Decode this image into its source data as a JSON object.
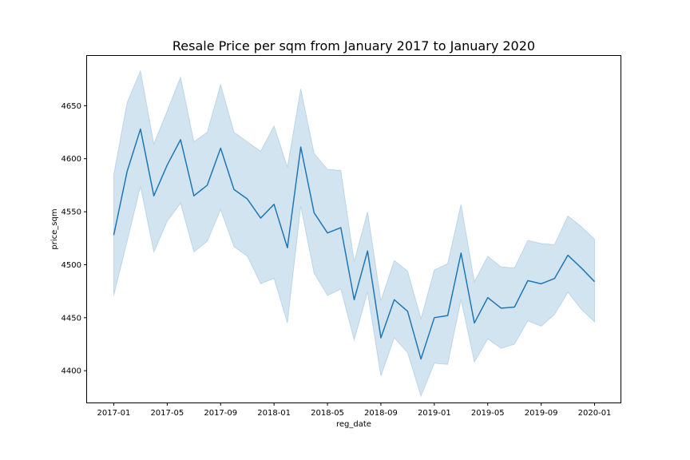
{
  "chart_data": {
    "type": "line",
    "title": "Resale Price per sqm from January 2017 to January 2020",
    "xlabel": "reg_date",
    "ylabel": "price_sqm",
    "x_tick_labels": [
      "2017-01",
      "2017-05",
      "2017-09",
      "2018-01",
      "2018-05",
      "2018-09",
      "2019-01",
      "2019-05",
      "2019-09",
      "2020-01"
    ],
    "y_ticks": [
      4400,
      4450,
      4500,
      4550,
      4600,
      4650
    ],
    "ylim": [
      4370,
      4697
    ],
    "xlim": [
      "2016-11",
      "2020-03"
    ],
    "grid": false,
    "legend": false,
    "x": [
      "2017-01",
      "2017-02",
      "2017-03",
      "2017-04",
      "2017-05",
      "2017-06",
      "2017-07",
      "2017-08",
      "2017-09",
      "2017-10",
      "2017-11",
      "2017-12",
      "2018-01",
      "2018-02",
      "2018-03",
      "2018-04",
      "2018-05",
      "2018-06",
      "2018-07",
      "2018-08",
      "2018-09",
      "2018-10",
      "2018-11",
      "2018-12",
      "2019-01",
      "2019-02",
      "2019-03",
      "2019-04",
      "2019-05",
      "2019-06",
      "2019-07",
      "2019-08",
      "2019-09",
      "2019-10",
      "2019-11",
      "2019-12",
      "2020-01"
    ],
    "series": [
      {
        "values": [
          4528,
          4588,
          4628,
          4565,
          4594,
          4618,
          4565,
          4575,
          4610,
          4571,
          4562,
          4544,
          4557,
          4516,
          4611,
          4549,
          4530,
          4535,
          4467,
          4513,
          4431,
          4467,
          4456,
          4411,
          4450,
          4452,
          4511,
          4445,
          4469,
          4459,
          4460,
          4485,
          4482,
          4487,
          4509,
          4497,
          4484
        ],
        "ci_upper": [
          4585,
          4653,
          4683,
          4614,
          4645,
          4677,
          4616,
          4625,
          4670,
          4625,
          4616,
          4607,
          4631,
          4592,
          4666,
          4605,
          4590,
          4589,
          4503,
          4550,
          4466,
          4504,
          4494,
          4449,
          4495,
          4501,
          4557,
          4484,
          4508,
          4498,
          4497,
          4523,
          4520,
          4519,
          4546,
          4536,
          4524
        ],
        "ci_lower": [
          4471,
          4522,
          4574,
          4512,
          4541,
          4558,
          4512,
          4522,
          4552,
          4517,
          4508,
          4482,
          4487,
          4445,
          4555,
          4492,
          4471,
          4477,
          4429,
          4474,
          4395,
          4431,
          4417,
          4376,
          4407,
          4406,
          4467,
          4408,
          4430,
          4421,
          4425,
          4447,
          4442,
          4453,
          4474,
          4458,
          4446
        ]
      }
    ]
  },
  "colors": {
    "line": "#1f77b4",
    "band": "#1f77b4"
  }
}
